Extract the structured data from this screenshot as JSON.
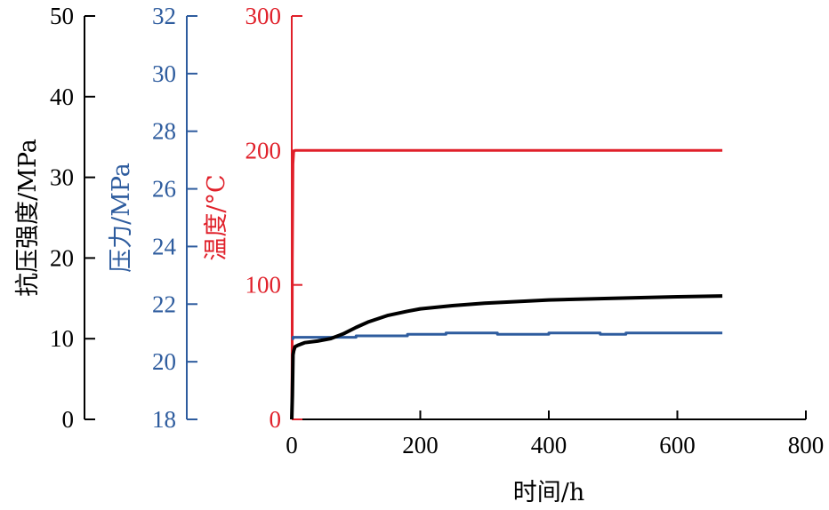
{
  "chart_data": {
    "type": "line",
    "xlabel": "时间/h",
    "x_ticks": [
      "0",
      "200",
      "400",
      "600",
      "800"
    ],
    "xlim": [
      0,
      800
    ],
    "y_axes": [
      {
        "id": "strength",
        "label": "抗压强度/MPa",
        "color": "#000000",
        "range": [
          0,
          50
        ],
        "ticks": [
          "0",
          "10",
          "20",
          "30",
          "40",
          "50"
        ]
      },
      {
        "id": "pressure",
        "label": "压力/MPa",
        "color": "#2e5c9e",
        "range": [
          18,
          32
        ],
        "ticks": [
          "18",
          "20",
          "22",
          "24",
          "26",
          "28",
          "30",
          "32"
        ]
      },
      {
        "id": "temperature",
        "label": "温度/°C",
        "color": "#e0202a",
        "range": [
          0,
          300
        ],
        "ticks": [
          "0",
          "100",
          "200",
          "300"
        ]
      }
    ],
    "series": [
      {
        "axis": "temperature",
        "color": "#e0202a",
        "x": [
          0,
          0.5,
          1,
          2,
          3,
          5,
          10,
          50,
          100,
          200,
          300,
          400,
          500,
          600,
          670
        ],
        "y": [
          0,
          40,
          120,
          190,
          199,
          200,
          200,
          200,
          200,
          200,
          200,
          200,
          200,
          200,
          200
        ]
      },
      {
        "axis": "pressure",
        "color": "#2e5c9e",
        "x": [
          0,
          2,
          5,
          20,
          50,
          70,
          100,
          140,
          180,
          220,
          240,
          260,
          280,
          320,
          360,
          400,
          440,
          480,
          520,
          560,
          600,
          640,
          670
        ],
        "y": [
          20.8,
          20.85,
          20.85,
          20.85,
          20.85,
          20.85,
          20.9,
          20.9,
          20.95,
          20.95,
          21.0,
          21.0,
          21.0,
          20.95,
          20.95,
          21.0,
          21.0,
          20.95,
          21.0,
          21.0,
          21.0,
          21.0,
          21.0
        ]
      },
      {
        "axis": "strength",
        "color": "#000000",
        "x": [
          0,
          1,
          2,
          3,
          5,
          10,
          20,
          40,
          60,
          80,
          100,
          120,
          150,
          180,
          200,
          250,
          300,
          400,
          500,
          600,
          670
        ],
        "y": [
          0,
          3,
          8,
          8.5,
          9.0,
          9.2,
          9.5,
          9.7,
          10.0,
          10.6,
          11.4,
          12.1,
          12.9,
          13.4,
          13.7,
          14.1,
          14.4,
          14.8,
          15.0,
          15.2,
          15.3
        ]
      }
    ]
  }
}
